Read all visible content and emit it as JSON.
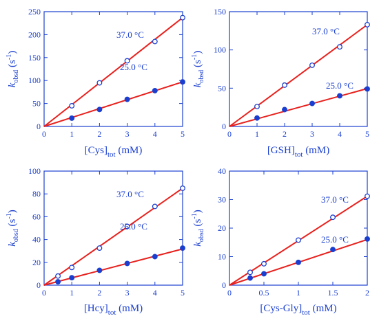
{
  "colors": {
    "axis": "#1a3fd0",
    "fit_line": "#e8201c",
    "marker": "#1a3fd0",
    "background": "#ffffff"
  },
  "chart_data": [
    {
      "type": "scatter",
      "panel": "cys",
      "xlabel": {
        "main": "[Cys]",
        "sub": "tot",
        "unit": " (mM)"
      },
      "ylabel": {
        "k": "k",
        "ksub": "obsd",
        "unit_pre": " (s",
        "unit_sup": "-1",
        "unit_post": ")"
      },
      "xlim": [
        0,
        5
      ],
      "ylim": [
        0,
        250
      ],
      "xticks": [
        0,
        1,
        2,
        3,
        4,
        5
      ],
      "yticks": [
        0,
        50,
        100,
        150,
        200,
        250
      ],
      "series": [
        {
          "name": "37.0 °C",
          "marker": "open",
          "x": [
            1,
            2,
            3,
            4,
            5
          ],
          "y": [
            45,
            95,
            143,
            185,
            237
          ],
          "fit": [
            0,
            47.4
          ]
        },
        {
          "name": "25.0 °C",
          "marker": "filled",
          "x": [
            1,
            2,
            3,
            4,
            5
          ],
          "y": [
            18,
            37,
            59,
            78,
            97
          ],
          "fit": [
            0,
            19.4
          ]
        }
      ]
    },
    {
      "type": "scatter",
      "panel": "gsh",
      "xlabel": {
        "main": "[GSH]",
        "sub": "tot",
        "unit": " (mM)"
      },
      "ylabel": {
        "k": "k",
        "ksub": "obsd",
        "unit_pre": " (s",
        "unit_sup": "-1",
        "unit_post": ")"
      },
      "xlim": [
        0,
        5
      ],
      "ylim": [
        0,
        150
      ],
      "xticks": [
        0,
        1,
        2,
        3,
        4,
        5
      ],
      "yticks": [
        0,
        50,
        100,
        150
      ],
      "series": [
        {
          "name": "37.0 °C",
          "marker": "open",
          "x": [
            1,
            2,
            3,
            4,
            5
          ],
          "y": [
            26,
            54,
            80,
            104,
            133
          ],
          "fit": [
            0,
            26.6
          ]
        },
        {
          "name": "25.0 °C",
          "marker": "filled",
          "x": [
            1,
            2,
            3,
            4,
            5
          ],
          "y": [
            11,
            22,
            30,
            40,
            49
          ],
          "fit": [
            0,
            9.9
          ]
        }
      ]
    },
    {
      "type": "scatter",
      "panel": "hcy",
      "xlabel": {
        "main": "[Hcy]",
        "sub": "tot",
        "unit": " (mM)"
      },
      "ylabel": {
        "k": "k",
        "ksub": "obsd",
        "unit_pre": " (s",
        "unit_sup": "-1",
        "unit_post": ")"
      },
      "xlim": [
        0,
        5
      ],
      "ylim": [
        0,
        100
      ],
      "xticks": [
        0,
        1,
        2,
        3,
        4,
        5
      ],
      "yticks": [
        0,
        20,
        40,
        60,
        80,
        100
      ],
      "series": [
        {
          "name": "37.0 °C",
          "marker": "open",
          "x": [
            0.5,
            1,
            2,
            3,
            4,
            5
          ],
          "y": [
            8,
            15.5,
            32.5,
            51.5,
            69,
            85
          ],
          "fit": [
            0,
            17.0
          ]
        },
        {
          "name": "25.0 °C",
          "marker": "filled",
          "x": [
            0.5,
            1,
            2,
            3,
            4,
            5
          ],
          "y": [
            3,
            6.5,
            13,
            19,
            25,
            32.5
          ],
          "fit": [
            0,
            6.35
          ]
        }
      ]
    },
    {
      "type": "scatter",
      "panel": "cysgly",
      "xlabel": {
        "main": "[Cys-Gly]",
        "sub": "tot",
        "unit": " (mM)"
      },
      "ylabel": {
        "k": "k",
        "ksub": "obsd",
        "unit_pre": " (s",
        "unit_sup": "-1",
        "unit_post": ")"
      },
      "xlim": [
        0,
        2
      ],
      "ylim": [
        0,
        40
      ],
      "xticks": [
        0,
        0.5,
        1,
        1.5,
        2
      ],
      "yticks": [
        0,
        10,
        20,
        30,
        40
      ],
      "series": [
        {
          "name": "37.0 °C",
          "marker": "open",
          "x": [
            0.3,
            0.5,
            1,
            1.5,
            2
          ],
          "y": [
            4.5,
            7.5,
            15.8,
            23.8,
            31.2
          ],
          "fit": [
            0,
            15.6
          ]
        },
        {
          "name": "25.0 °C",
          "marker": "filled",
          "x": [
            0.3,
            0.5,
            1,
            1.5,
            2
          ],
          "y": [
            2.5,
            4,
            8,
            12.5,
            16.2
          ],
          "fit": [
            0,
            8.0
          ]
        }
      ]
    }
  ]
}
